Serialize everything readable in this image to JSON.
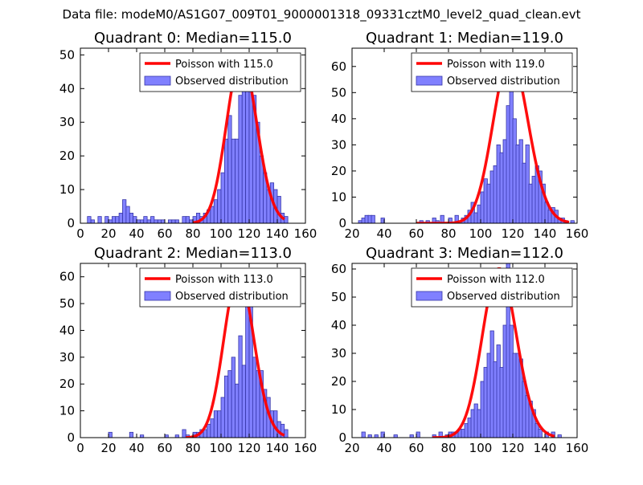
{
  "figure": {
    "suptitle": "Data file: modeM0/AS1G07_009T01_9000001318_09331cztM0_level2_quad_clean.evt"
  },
  "colors": {
    "poisson": "#ff0000",
    "hist_fill": "#8080ff",
    "hist_edge": "#3535a8"
  },
  "chart_data": [
    {
      "type": "bar",
      "title": "Quadrant 0: Median=115.0",
      "xlabel": "",
      "ylabel": "",
      "xlim": [
        0,
        160
      ],
      "ylim": [
        0,
        52
      ],
      "xticks": [
        0,
        20,
        40,
        60,
        80,
        100,
        120,
        140,
        160
      ],
      "yticks": [
        0,
        10,
        20,
        30,
        40,
        50
      ],
      "legend_position": "top-right",
      "bin_width": 2.5,
      "series": [
        {
          "name": "Observed distribution",
          "kind": "histogram",
          "bins": [
            [
              5,
              2
            ],
            [
              7.5,
              1
            ],
            [
              12.5,
              2
            ],
            [
              17.5,
              2
            ],
            [
              20,
              1
            ],
            [
              22.5,
              2
            ],
            [
              25,
              2
            ],
            [
              27.5,
              3
            ],
            [
              30,
              7
            ],
            [
              32.5,
              5
            ],
            [
              35,
              3
            ],
            [
              37.5,
              2
            ],
            [
              40,
              1
            ],
            [
              42.5,
              1
            ],
            [
              45,
              2
            ],
            [
              47.5,
              1
            ],
            [
              50,
              2
            ],
            [
              52.5,
              1
            ],
            [
              55,
              1
            ],
            [
              57.5,
              1
            ],
            [
              62.5,
              1
            ],
            [
              65,
              1
            ],
            [
              67.5,
              1
            ],
            [
              72.5,
              2
            ],
            [
              75,
              2
            ],
            [
              77.5,
              1
            ],
            [
              80,
              2
            ],
            [
              82.5,
              3
            ],
            [
              85,
              2
            ],
            [
              87.5,
              3
            ],
            [
              90,
              4
            ],
            [
              92.5,
              5
            ],
            [
              95,
              7
            ],
            [
              97.5,
              10
            ],
            [
              100,
              15
            ],
            [
              102.5,
              25
            ],
            [
              105,
              32
            ],
            [
              107.5,
              25
            ],
            [
              110,
              25
            ],
            [
              112.5,
              38
            ],
            [
              115,
              40
            ],
            [
              117.5,
              45
            ],
            [
              120,
              40
            ],
            [
              122.5,
              38
            ],
            [
              125,
              30
            ],
            [
              127.5,
              20
            ],
            [
              130,
              15
            ],
            [
              132.5,
              10
            ],
            [
              135,
              12
            ],
            [
              137.5,
              10
            ],
            [
              140,
              8
            ],
            [
              142.5,
              3
            ],
            [
              145,
              2
            ]
          ]
        },
        {
          "name": "Poisson with 115.0",
          "kind": "line",
          "mean": 115.0,
          "scale": 1320,
          "x_range": [
            80,
            145
          ]
        }
      ]
    },
    {
      "type": "bar",
      "title": "Quadrant 1: Median=119.0",
      "xlabel": "",
      "ylabel": "",
      "xlim": [
        20,
        160
      ],
      "ylim": [
        0,
        67
      ],
      "xticks": [
        20,
        40,
        60,
        80,
        100,
        120,
        140,
        160
      ],
      "yticks": [
        0,
        10,
        20,
        30,
        40,
        50,
        60
      ],
      "legend_position": "top-right",
      "bin_width": 2.2,
      "series": [
        {
          "name": "Observed distribution",
          "kind": "histogram",
          "bins": [
            [
              24,
              1
            ],
            [
              26,
              2
            ],
            [
              28,
              3
            ],
            [
              30,
              3
            ],
            [
              32,
              3
            ],
            [
              38,
              2
            ],
            [
              62,
              1
            ],
            [
              66,
              1
            ],
            [
              70,
              2
            ],
            [
              72,
              1
            ],
            [
              75,
              3
            ],
            [
              80,
              2
            ],
            [
              84,
              3
            ],
            [
              88,
              2
            ],
            [
              90,
              3
            ],
            [
              92,
              5
            ],
            [
              94,
              8
            ],
            [
              96,
              4
            ],
            [
              98,
              7
            ],
            [
              100,
              12
            ],
            [
              102,
              17
            ],
            [
              104,
              15
            ],
            [
              106,
              20
            ],
            [
              108,
              22
            ],
            [
              110,
              30
            ],
            [
              112,
              27
            ],
            [
              114,
              32
            ],
            [
              116,
              45
            ],
            [
              118,
              65
            ],
            [
              120,
              40
            ],
            [
              122,
              30
            ],
            [
              124,
              32
            ],
            [
              126,
              23
            ],
            [
              128,
              30
            ],
            [
              130,
              15
            ],
            [
              132,
              18
            ],
            [
              134,
              22
            ],
            [
              136,
              20
            ],
            [
              138,
              15
            ],
            [
              140,
              8
            ],
            [
              142,
              5
            ],
            [
              144,
              6
            ],
            [
              146,
              5
            ],
            [
              148,
              2
            ],
            [
              150,
              2
            ],
            [
              152,
              1
            ],
            [
              156,
              1
            ]
          ]
        },
        {
          "name": "Poisson with 119.0",
          "kind": "line",
          "mean": 119.0,
          "scale": 1745,
          "x_range": [
            60,
            155
          ]
        }
      ]
    },
    {
      "type": "bar",
      "title": "Quadrant 2: Median=113.0",
      "xlabel": "",
      "ylabel": "",
      "xlim": [
        0,
        160
      ],
      "ylim": [
        0,
        65
      ],
      "xticks": [
        0,
        20,
        40,
        60,
        80,
        100,
        120,
        140,
        160
      ],
      "yticks": [
        0,
        10,
        20,
        30,
        40,
        50,
        60
      ],
      "legend_position": "top-right",
      "bin_width": 2.5,
      "series": [
        {
          "name": "Observed distribution",
          "kind": "histogram",
          "bins": [
            [
              20,
              2
            ],
            [
              35,
              2
            ],
            [
              42.5,
              1
            ],
            [
              60,
              1
            ],
            [
              67.5,
              1
            ],
            [
              72.5,
              3
            ],
            [
              75,
              1
            ],
            [
              80,
              2
            ],
            [
              82.5,
              2
            ],
            [
              85,
              3
            ],
            [
              87.5,
              3
            ],
            [
              90,
              5
            ],
            [
              92.5,
              7
            ],
            [
              95,
              10
            ],
            [
              97.5,
              10
            ],
            [
              100,
              15
            ],
            [
              102.5,
              23
            ],
            [
              105,
              25
            ],
            [
              107.5,
              30
            ],
            [
              110,
              20
            ],
            [
              112.5,
              38
            ],
            [
              115,
              27
            ],
            [
              117.5,
              60
            ],
            [
              120,
              55
            ],
            [
              122.5,
              30
            ],
            [
              125,
              25
            ],
            [
              127.5,
              25
            ],
            [
              130,
              18
            ],
            [
              132.5,
              15
            ],
            [
              135,
              10
            ],
            [
              137.5,
              10
            ],
            [
              140,
              6
            ],
            [
              142.5,
              5
            ],
            [
              145,
              3
            ]
          ]
        },
        {
          "name": "Poisson with 113.0",
          "kind": "line",
          "mean": 113.0,
          "scale": 1625,
          "x_range": [
            75,
            145
          ]
        }
      ]
    },
    {
      "type": "bar",
      "title": "Quadrant 3: Median=112.0",
      "xlabel": "",
      "ylabel": "",
      "xlim": [
        20,
        160
      ],
      "ylim": [
        0,
        62
      ],
      "xticks": [
        20,
        40,
        60,
        80,
        100,
        120,
        140,
        160
      ],
      "yticks": [
        0,
        10,
        20,
        30,
        40,
        50,
        60
      ],
      "legend_position": "top-right",
      "bin_width": 2.2,
      "series": [
        {
          "name": "Observed distribution",
          "kind": "histogram",
          "bins": [
            [
              26,
              2
            ],
            [
              30,
              1
            ],
            [
              34,
              1
            ],
            [
              38,
              2
            ],
            [
              46,
              1
            ],
            [
              56,
              1
            ],
            [
              60,
              2
            ],
            [
              70,
              1
            ],
            [
              74,
              2
            ],
            [
              78,
              1
            ],
            [
              80,
              2
            ],
            [
              82,
              2
            ],
            [
              84,
              2
            ],
            [
              86,
              3
            ],
            [
              88,
              3
            ],
            [
              90,
              5
            ],
            [
              92,
              7
            ],
            [
              94,
              10
            ],
            [
              96,
              12
            ],
            [
              98,
              10
            ],
            [
              100,
              20
            ],
            [
              102,
              25
            ],
            [
              104,
              30
            ],
            [
              106,
              38
            ],
            [
              108,
              27
            ],
            [
              110,
              33
            ],
            [
              112,
              25
            ],
            [
              114,
              40
            ],
            [
              116,
              62
            ],
            [
              118,
              40
            ],
            [
              120,
              30
            ],
            [
              122,
              30
            ],
            [
              124,
              28
            ],
            [
              126,
              20
            ],
            [
              128,
              15
            ],
            [
              130,
              13
            ],
            [
              132,
              10
            ],
            [
              134,
              5
            ],
            [
              136,
              3
            ],
            [
              140,
              2
            ],
            [
              144,
              2
            ],
            [
              148,
              1
            ]
          ]
        },
        {
          "name": "Poisson with 112.0",
          "kind": "line",
          "mean": 112.0,
          "scale": 1596,
          "x_range": [
            70,
            146
          ]
        }
      ]
    }
  ]
}
